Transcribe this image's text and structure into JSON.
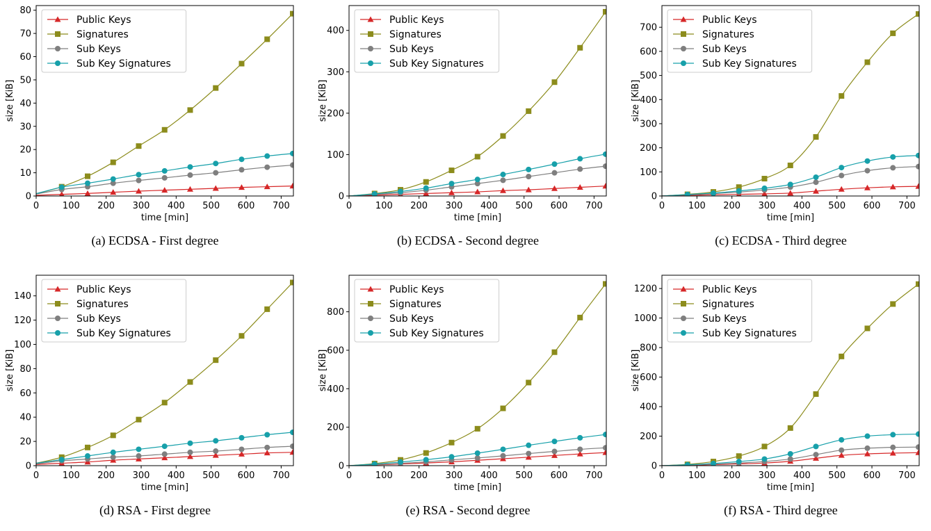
{
  "chart_data": [
    {
      "type": "line",
      "caption": "(a) ECDSA - First degree",
      "xlabel": "time [min]",
      "ylabel": "size [KiB]",
      "xlim": [
        0,
        735
      ],
      "ylim": [
        0,
        82
      ],
      "xticks": [
        0,
        100,
        200,
        300,
        400,
        500,
        600,
        700
      ],
      "yticks": [
        0,
        10,
        20,
        30,
        40,
        50,
        60,
        70,
        80
      ],
      "legend": "top-left",
      "x": [
        0,
        73,
        147,
        220,
        293,
        367,
        440,
        513,
        587,
        660,
        733
      ],
      "series": [
        {
          "name": "Public Keys",
          "color": "#d62728",
          "marker": "triangle",
          "values": [
            0.3,
            0.7,
            1.1,
            1.6,
            2.1,
            2.5,
            2.9,
            3.3,
            3.7,
            4.0,
            4.3
          ]
        },
        {
          "name": "Signatures",
          "color": "#8c8c1c",
          "marker": "square",
          "values": [
            1.0,
            4.0,
            8.5,
            14.5,
            21.5,
            28.5,
            37.0,
            46.5,
            57.0,
            67.5,
            78.5
          ]
        },
        {
          "name": "Sub Keys",
          "color": "#7f7f7f",
          "marker": "circle",
          "values": [
            0.8,
            2.8,
            4.0,
            5.5,
            6.7,
            7.8,
            9.0,
            10.0,
            11.3,
            12.4,
            13.3
          ]
        },
        {
          "name": "Sub Key Signatures",
          "color": "#17a0aa",
          "marker": "circle",
          "values": [
            1.0,
            3.8,
            5.5,
            7.3,
            9.2,
            10.8,
            12.5,
            14.0,
            15.8,
            17.2,
            18.3
          ]
        }
      ]
    },
    {
      "type": "line",
      "caption": "(b) ECDSA - Second degree",
      "xlabel": "time [min]",
      "ylabel": "size [KiB]",
      "xlim": [
        0,
        735
      ],
      "ylim": [
        0,
        460
      ],
      "xticks": [
        0,
        100,
        200,
        300,
        400,
        500,
        600,
        700
      ],
      "yticks": [
        0,
        100,
        200,
        300,
        400
      ],
      "legend": "top-left",
      "x": [
        0,
        73,
        147,
        220,
        293,
        367,
        440,
        513,
        587,
        660,
        733
      ],
      "series": [
        {
          "name": "Public Keys",
          "color": "#d62728",
          "marker": "triangle",
          "values": [
            0,
            2,
            4,
            6,
            8,
            10,
            13,
            15,
            18,
            21,
            24
          ]
        },
        {
          "name": "Signatures",
          "color": "#8c8c1c",
          "marker": "square",
          "values": [
            0,
            6,
            15,
            34,
            62,
            95,
            145,
            205,
            275,
            358,
            445
          ]
        },
        {
          "name": "Sub Keys",
          "color": "#7f7f7f",
          "marker": "circle",
          "values": [
            0,
            4,
            8,
            14,
            22,
            30,
            38,
            47,
            56,
            65,
            72
          ]
        },
        {
          "name": "Sub Key Signatures",
          "color": "#17a0aa",
          "marker": "circle",
          "values": [
            0,
            5,
            11,
            19,
            30,
            40,
            52,
            64,
            77,
            90,
            101
          ]
        }
      ]
    },
    {
      "type": "line",
      "caption": "(c) ECDSA - Third degree",
      "xlabel": "time [min]",
      "ylabel": "size [KiB]",
      "xlim": [
        0,
        735
      ],
      "ylim": [
        0,
        790
      ],
      "xticks": [
        0,
        100,
        200,
        300,
        400,
        500,
        600,
        700
      ],
      "yticks": [
        0,
        100,
        200,
        300,
        400,
        500,
        600,
        700
      ],
      "legend": "top-left",
      "x": [
        0,
        73,
        147,
        220,
        293,
        367,
        440,
        513,
        587,
        660,
        733
      ],
      "series": [
        {
          "name": "Public Keys",
          "color": "#d62728",
          "marker": "triangle",
          "values": [
            0,
            3,
            5,
            7,
            9,
            12,
            20,
            28,
            34,
            38,
            40
          ]
        },
        {
          "name": "Signatures",
          "color": "#8c8c1c",
          "marker": "square",
          "values": [
            0,
            7,
            17,
            37,
            72,
            127,
            245,
            415,
            555,
            675,
            755
          ]
        },
        {
          "name": "Sub Keys",
          "color": "#7f7f7f",
          "marker": "circle",
          "values": [
            0,
            5,
            10,
            16,
            25,
            37,
            57,
            85,
            105,
            117,
            122
          ]
        },
        {
          "name": "Sub Key Signatures",
          "color": "#17a0aa",
          "marker": "circle",
          "values": [
            0,
            6,
            12,
            21,
            32,
            48,
            78,
            118,
            145,
            162,
            168
          ]
        }
      ]
    },
    {
      "type": "line",
      "caption": "(d) RSA - First degree",
      "xlabel": "time [min]",
      "ylabel": "size [KiB]",
      "xlim": [
        0,
        735
      ],
      "ylim": [
        0,
        157
      ],
      "xticks": [
        0,
        100,
        200,
        300,
        400,
        500,
        600,
        700
      ],
      "yticks": [
        0,
        20,
        40,
        60,
        80,
        100,
        120,
        140
      ],
      "legend": "top-left",
      "x": [
        0,
        73,
        147,
        220,
        293,
        367,
        440,
        513,
        587,
        660,
        733
      ],
      "series": [
        {
          "name": "Public Keys",
          "color": "#d62728",
          "marker": "triangle",
          "values": [
            1,
            2,
            3,
            4.5,
            5.5,
            6.5,
            7.5,
            8.5,
            9.5,
            10.5,
            11
          ]
        },
        {
          "name": "Signatures",
          "color": "#8c8c1c",
          "marker": "square",
          "values": [
            2,
            7,
            15,
            25,
            38,
            52,
            69,
            87,
            107,
            129,
            151
          ]
        },
        {
          "name": "Sub Keys",
          "color": "#7f7f7f",
          "marker": "circle",
          "values": [
            1.5,
            4,
            5.5,
            7,
            8,
            9.5,
            11,
            12,
            13.5,
            15,
            16
          ]
        },
        {
          "name": "Sub Key Signatures",
          "color": "#17a0aa",
          "marker": "circle",
          "values": [
            2,
            5,
            8,
            11,
            13.5,
            16,
            18.5,
            20.5,
            23,
            25.5,
            27.5
          ]
        }
      ]
    },
    {
      "type": "line",
      "caption": "(e) RSA - Second degree",
      "xlabel": "time [min]",
      "ylabel": "size [KiB]",
      "xlim": [
        0,
        735
      ],
      "ylim": [
        0,
        990
      ],
      "xticks": [
        0,
        100,
        200,
        300,
        400,
        500,
        600,
        700
      ],
      "yticks": [
        0,
        200,
        400,
        600,
        800
      ],
      "legend": "top-left",
      "x": [
        0,
        73,
        147,
        220,
        293,
        367,
        440,
        513,
        587,
        660,
        733
      ],
      "series": [
        {
          "name": "Public Keys",
          "color": "#d62728",
          "marker": "triangle",
          "values": [
            0,
            4,
            9,
            14,
            20,
            28,
            36,
            44,
            53,
            61,
            68
          ]
        },
        {
          "name": "Signatures",
          "color": "#8c8c1c",
          "marker": "square",
          "values": [
            0,
            11,
            30,
            66,
            120,
            192,
            298,
            432,
            590,
            770,
            945
          ]
        },
        {
          "name": "Sub Keys",
          "color": "#7f7f7f",
          "marker": "circle",
          "values": [
            0,
            5,
            12,
            20,
            30,
            40,
            51,
            63,
            74,
            85,
            93
          ]
        },
        {
          "name": "Sub Key Signatures",
          "color": "#17a0aa",
          "marker": "circle",
          "values": [
            0,
            8,
            19,
            31,
            46,
            65,
            85,
            106,
            126,
            145,
            162
          ]
        }
      ]
    },
    {
      "type": "line",
      "caption": "(f) RSA - Third degree",
      "xlabel": "time [min]",
      "ylabel": "size [KiB]",
      "xlim": [
        0,
        735
      ],
      "ylim": [
        0,
        1290
      ],
      "xticks": [
        0,
        100,
        200,
        300,
        400,
        500,
        600,
        700
      ],
      "yticks": [
        0,
        200,
        400,
        600,
        800,
        1000,
        1200
      ],
      "legend": "top-left",
      "x": [
        0,
        73,
        147,
        220,
        293,
        367,
        440,
        513,
        587,
        660,
        733
      ],
      "series": [
        {
          "name": "Public Keys",
          "color": "#d62728",
          "marker": "triangle",
          "values": [
            0,
            3,
            7,
            12,
            18,
            30,
            50,
            70,
            80,
            85,
            88
          ]
        },
        {
          "name": "Signatures",
          "color": "#8c8c1c",
          "marker": "square",
          "values": [
            0,
            9,
            28,
            65,
            130,
            255,
            485,
            740,
            930,
            1095,
            1230
          ]
        },
        {
          "name": "Sub Keys",
          "color": "#7f7f7f",
          "marker": "circle",
          "values": [
            0,
            4,
            10,
            18,
            28,
            45,
            75,
            105,
            118,
            124,
            126
          ]
        },
        {
          "name": "Sub Key Signatures",
          "color": "#17a0aa",
          "marker": "circle",
          "values": [
            0,
            6,
            15,
            28,
            45,
            80,
            130,
            175,
            200,
            210,
            214
          ]
        }
      ]
    }
  ]
}
